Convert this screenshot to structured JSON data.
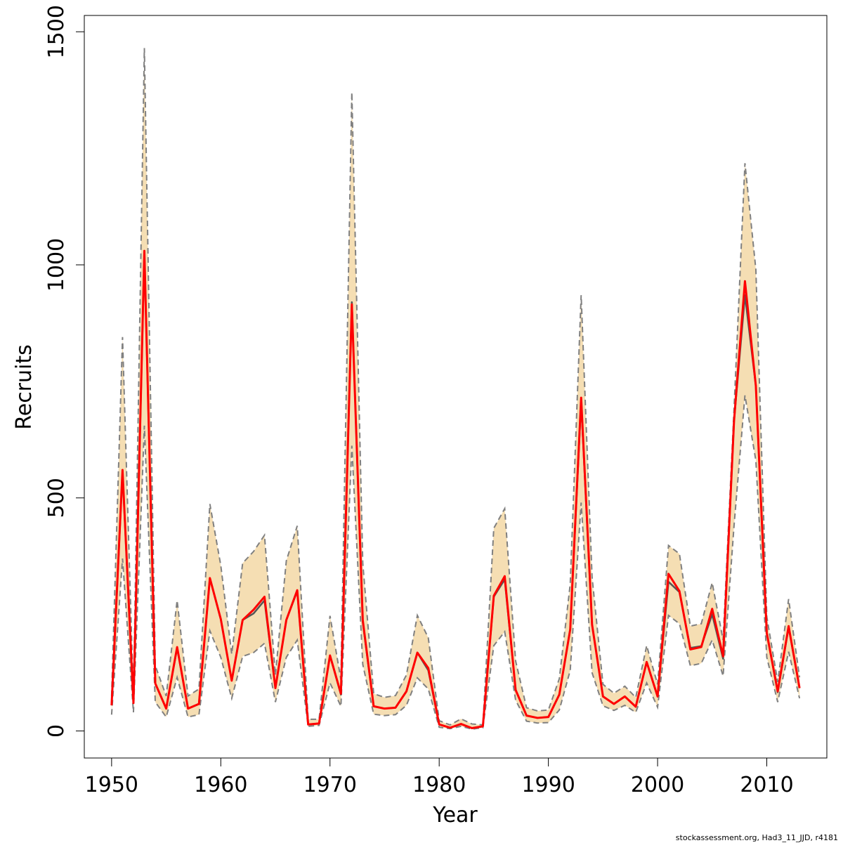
{
  "chart_data": {
    "type": "line",
    "title": "",
    "xlabel": "Year",
    "ylabel": "Recruits",
    "xlim": [
      1947.5,
      2015.5
    ],
    "ylim": [
      -58,
      1535
    ],
    "grid": false,
    "legend": "none",
    "x_ticks": [
      1950,
      1960,
      1970,
      1980,
      1990,
      2000,
      2010
    ],
    "y_ticks": [
      0,
      500,
      1000,
      1500
    ],
    "x": [
      1950,
      1951,
      1952,
      1953,
      1954,
      1955,
      1956,
      1957,
      1958,
      1959,
      1960,
      1961,
      1962,
      1963,
      1964,
      1965,
      1966,
      1967,
      1968,
      1969,
      1970,
      1971,
      1972,
      1973,
      1974,
      1975,
      1976,
      1977,
      1978,
      1979,
      1980,
      1981,
      1982,
      1983,
      1984,
      1985,
      1986,
      1987,
      1988,
      1989,
      1990,
      1991,
      1992,
      1993,
      1994,
      1995,
      1996,
      1997,
      1998,
      1999,
      2000,
      2001,
      2002,
      2003,
      2004,
      2005,
      2006,
      2007,
      2008,
      2009,
      2010,
      2011,
      2012,
      2013
    ],
    "series": [
      {
        "role": "upper",
        "values": [
          75,
          845,
          70,
          1465,
          140,
          75,
          280,
          75,
          90,
          487,
          355,
          165,
          360,
          385,
          420,
          120,
          365,
          440,
          25,
          25,
          247,
          110,
          1370,
          360,
          80,
          72,
          76,
          120,
          248,
          200,
          22,
          13,
          26,
          15,
          13,
          435,
          477,
          150,
          50,
          43,
          45,
          112,
          315,
          935,
          330,
          100,
          81,
          96,
          72,
          183,
          100,
          398,
          380,
          225,
          230,
          318,
          195,
          690,
          1218,
          990,
          245,
          105,
          283,
          115
        ]
      },
      {
        "role": "lower",
        "values": [
          35,
          370,
          40,
          655,
          62,
          30,
          115,
          30,
          35,
          215,
          158,
          70,
          160,
          168,
          188,
          62,
          158,
          195,
          10,
          12,
          103,
          53,
          612,
          143,
          36,
          33,
          35,
          55,
          114,
          90,
          8,
          5,
          10,
          4,
          7,
          183,
          213,
          66,
          21,
          17,
          18,
          45,
          130,
          490,
          125,
          54,
          44,
          55,
          40,
          103,
          51,
          248,
          230,
          140,
          145,
          195,
          118,
          440,
          720,
          580,
          158,
          62,
          170,
          70
        ]
      },
      {
        "role": "median",
        "color": "#555555",
        "values": [
          55,
          555,
          60,
          1025,
          102,
          48,
          178,
          48,
          58,
          328,
          240,
          108,
          238,
          252,
          280,
          92,
          238,
          300,
          14,
          16,
          162,
          78,
          920,
          233,
          53,
          48,
          50,
          85,
          168,
          130,
          14,
          7,
          15,
          6,
          10,
          288,
          325,
          88,
          33,
          28,
          30,
          78,
          218,
          705,
          228,
          74,
          58,
          74,
          52,
          148,
          74,
          320,
          298,
          178,
          182,
          250,
          155,
          665,
          935,
          740,
          210,
          83,
          222,
          92
        ]
      },
      {
        "role": "point estimate",
        "color": "#ff0000",
        "values": [
          55,
          560,
          60,
          1030,
          102,
          48,
          180,
          48,
          58,
          328,
          240,
          108,
          238,
          260,
          288,
          92,
          238,
          302,
          14,
          16,
          162,
          80,
          915,
          238,
          53,
          48,
          50,
          85,
          168,
          135,
          14,
          7,
          15,
          6,
          10,
          290,
          332,
          88,
          33,
          28,
          30,
          78,
          218,
          715,
          228,
          74,
          58,
          74,
          52,
          148,
          74,
          337,
          300,
          175,
          180,
          262,
          160,
          665,
          965,
          740,
          210,
          85,
          225,
          92
        ]
      }
    ],
    "band_color": "#f5deb3",
    "band_edge_color": "#808080"
  },
  "footnote": "stockassessment.org, Had3_11_JJD, r4181"
}
